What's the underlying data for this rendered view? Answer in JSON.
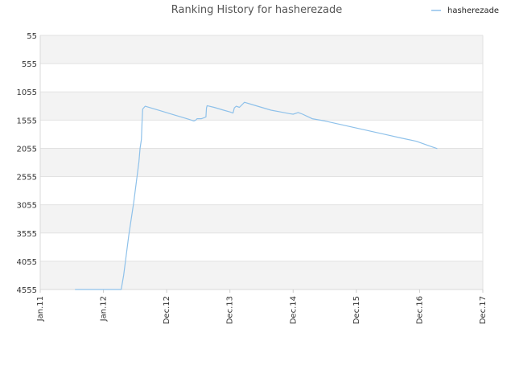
{
  "chart_data": {
    "type": "line",
    "title": "Ranking History for hasherezade",
    "xlabel": "",
    "ylabel": "",
    "x_ticks": [
      "Jan.11",
      "Jan.12",
      "Dec.12",
      "Dec.13",
      "Dec.14",
      "Dec.15",
      "Dec.16",
      "Dec.17"
    ],
    "y_ticks": [
      "55",
      "555",
      "1055",
      "1555",
      "2055",
      "2555",
      "3055",
      "3555",
      "4055",
      "4555"
    ],
    "ylim": [
      55,
      4555
    ],
    "y_inverted": true,
    "grid": true,
    "legend_position": "top-right",
    "series": [
      {
        "name": "hasherezade",
        "color": "#8ec1ea",
        "points": [
          [
            0.55,
            4555
          ],
          [
            1.28,
            4555
          ],
          [
            1.32,
            4300
          ],
          [
            1.4,
            3600
          ],
          [
            1.48,
            3000
          ],
          [
            1.56,
            2300
          ],
          [
            1.58,
            2050
          ],
          [
            1.6,
            1900
          ],
          [
            1.61,
            1600
          ],
          [
            1.62,
            1360
          ],
          [
            1.66,
            1310
          ],
          [
            1.75,
            1340
          ],
          [
            1.9,
            1390
          ],
          [
            2.05,
            1440
          ],
          [
            2.2,
            1490
          ],
          [
            2.35,
            1540
          ],
          [
            2.43,
            1570
          ],
          [
            2.46,
            1555
          ],
          [
            2.48,
            1530
          ],
          [
            2.55,
            1530
          ],
          [
            2.62,
            1500
          ],
          [
            2.63,
            1340
          ],
          [
            2.64,
            1300
          ],
          [
            2.75,
            1330
          ],
          [
            2.9,
            1380
          ],
          [
            3.0,
            1410
          ],
          [
            3.05,
            1430
          ],
          [
            3.07,
            1340
          ],
          [
            3.1,
            1310
          ],
          [
            3.15,
            1330
          ],
          [
            3.23,
            1240
          ],
          [
            3.35,
            1280
          ],
          [
            3.5,
            1330
          ],
          [
            3.65,
            1380
          ],
          [
            3.8,
            1410
          ],
          [
            3.94,
            1440
          ],
          [
            4.0,
            1450
          ],
          [
            4.08,
            1420
          ],
          [
            4.15,
            1450
          ],
          [
            4.3,
            1530
          ],
          [
            4.5,
            1570
          ],
          [
            4.7,
            1620
          ],
          [
            4.9,
            1670
          ],
          [
            5.1,
            1720
          ],
          [
            5.3,
            1770
          ],
          [
            5.5,
            1820
          ],
          [
            5.7,
            1870
          ],
          [
            5.95,
            1930
          ],
          [
            6.15,
            2010
          ],
          [
            6.28,
            2060
          ]
        ]
      }
    ]
  }
}
